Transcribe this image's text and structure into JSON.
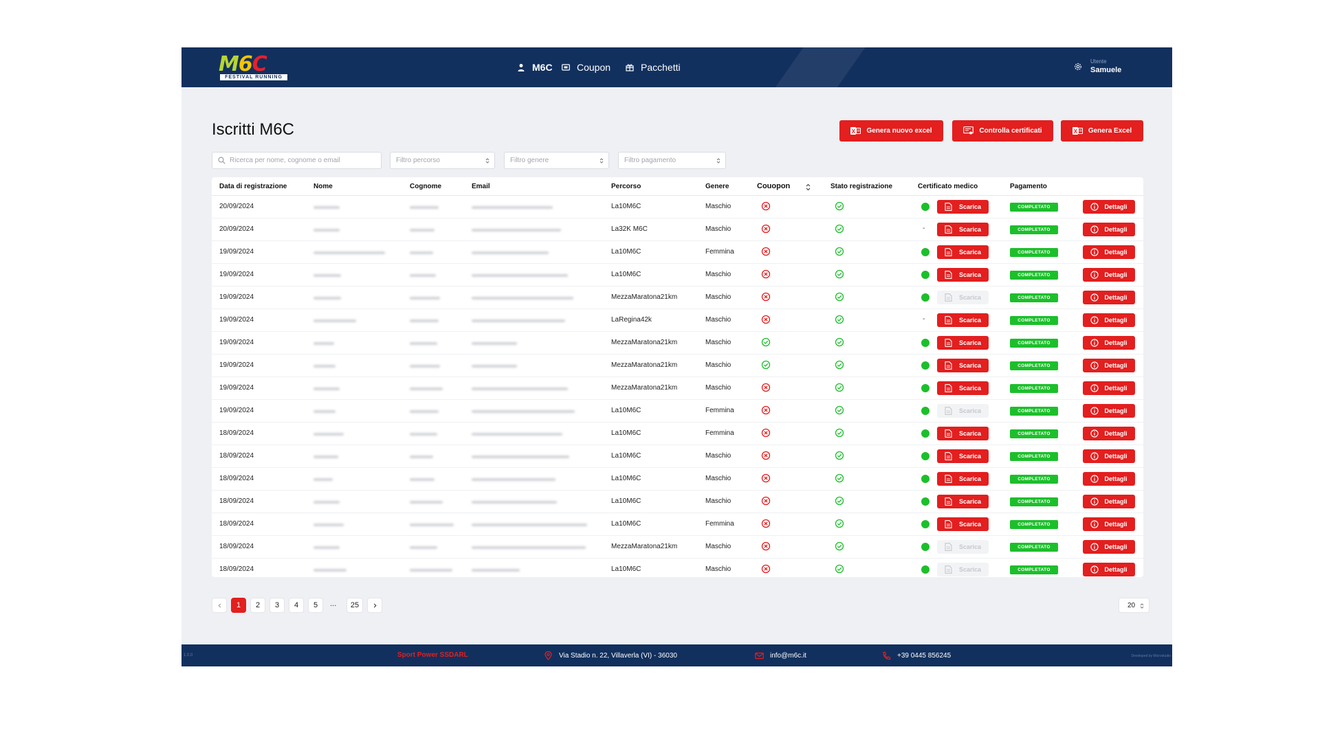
{
  "colors": {
    "navy": "#12305e",
    "red": "#e31f1f",
    "green": "#1cbf2b"
  },
  "header": {
    "nav": [
      {
        "label": "M6C",
        "icon": "user-icon",
        "active": true
      },
      {
        "label": "Coupon",
        "icon": "coupon-icon",
        "active": false
      },
      {
        "label": "Pacchetti",
        "icon": "gift-icon",
        "active": false
      }
    ],
    "user": {
      "role": "Utente",
      "name": "Samuele",
      "icon": "settings-icon"
    }
  },
  "page": {
    "title": "Iscritti M6C",
    "actions": {
      "new_excel": "Genera nuovo excel",
      "check_certificates": "Controlla certificati",
      "excel": "Genera Excel"
    }
  },
  "filters": {
    "search_placeholder": "Ricerca per nome, cognome o email",
    "route_placeholder": "Filtro percorso",
    "gender_placeholder": "Filtro genere",
    "payment_placeholder": "Filtro pagamento"
  },
  "table": {
    "headers": {
      "date": "Data di registrazione",
      "first_name": "Nome",
      "last_name": "Cognome",
      "email": "Email",
      "route": "Percorso",
      "gender": "Genere",
      "coupon": "Couopon",
      "status": "Stato registrazione",
      "certificate": "Certificato medico",
      "payment": "Pagamento"
    },
    "download_label": "Scarica",
    "details_label": "Dettagli",
    "rows": [
      {
        "date": "20/09/2024",
        "route": "La10M6C",
        "gender": "Maschio",
        "coupon": false,
        "registered": true,
        "cert": "ok",
        "download": true,
        "payment": "COMPLETATO"
      },
      {
        "date": "20/09/2024",
        "route": "La32K M6C",
        "gender": "Maschio",
        "coupon": false,
        "registered": true,
        "cert": "none",
        "download": true,
        "payment": "COMPLETATO"
      },
      {
        "date": "19/09/2024",
        "route": "La10M6C",
        "gender": "Femmina",
        "coupon": false,
        "registered": true,
        "cert": "ok",
        "download": true,
        "payment": "COMPLETATO"
      },
      {
        "date": "19/09/2024",
        "route": "La10M6C",
        "gender": "Maschio",
        "coupon": false,
        "registered": true,
        "cert": "ok",
        "download": true,
        "payment": "COMPLETATO"
      },
      {
        "date": "19/09/2024",
        "route": "MezzaMaratona21km",
        "gender": "Maschio",
        "coupon": false,
        "registered": true,
        "cert": "ok",
        "download": false,
        "payment": "COMPLETATO"
      },
      {
        "date": "19/09/2024",
        "route": "LaRegina42k",
        "gender": "Maschio",
        "coupon": false,
        "registered": true,
        "cert": "none",
        "download": true,
        "payment": "COMPLETATO"
      },
      {
        "date": "19/09/2024",
        "route": "MezzaMaratona21km",
        "gender": "Maschio",
        "coupon": true,
        "registered": true,
        "cert": "ok",
        "download": true,
        "payment": "COMPLETATO"
      },
      {
        "date": "19/09/2024",
        "route": "MezzaMaratona21km",
        "gender": "Maschio",
        "coupon": true,
        "registered": true,
        "cert": "ok",
        "download": true,
        "payment": "COMPLETATO"
      },
      {
        "date": "19/09/2024",
        "route": "MezzaMaratona21km",
        "gender": "Maschio",
        "coupon": false,
        "registered": true,
        "cert": "ok",
        "download": true,
        "payment": "COMPLETATO"
      },
      {
        "date": "19/09/2024",
        "route": "La10M6C",
        "gender": "Femmina",
        "coupon": false,
        "registered": true,
        "cert": "ok",
        "download": false,
        "payment": "COMPLETATO"
      },
      {
        "date": "18/09/2024",
        "route": "La10M6C",
        "gender": "Femmina",
        "coupon": false,
        "registered": true,
        "cert": "ok",
        "download": true,
        "payment": "COMPLETATO"
      },
      {
        "date": "18/09/2024",
        "route": "La10M6C",
        "gender": "Maschio",
        "coupon": false,
        "registered": true,
        "cert": "ok",
        "download": true,
        "payment": "COMPLETATO"
      },
      {
        "date": "18/09/2024",
        "route": "La10M6C",
        "gender": "Maschio",
        "coupon": false,
        "registered": true,
        "cert": "ok",
        "download": true,
        "payment": "COMPLETATO"
      },
      {
        "date": "18/09/2024",
        "route": "La10M6C",
        "gender": "Maschio",
        "coupon": false,
        "registered": true,
        "cert": "ok",
        "download": true,
        "payment": "COMPLETATO"
      },
      {
        "date": "18/09/2024",
        "route": "La10M6C",
        "gender": "Femmina",
        "coupon": false,
        "registered": true,
        "cert": "ok",
        "download": true,
        "payment": "COMPLETATO"
      },
      {
        "date": "18/09/2024",
        "route": "MezzaMaratona21km",
        "gender": "Maschio",
        "coupon": false,
        "registered": true,
        "cert": "ok",
        "download": false,
        "payment": "COMPLETATO"
      },
      {
        "date": "18/09/2024",
        "route": "La10M6C",
        "gender": "Maschio",
        "coupon": false,
        "registered": true,
        "cert": "ok",
        "download": false,
        "payment": "COMPLETATO"
      }
    ]
  },
  "pagination": {
    "pages": [
      "1",
      "2",
      "3",
      "4",
      "5"
    ],
    "ellipsis": "...",
    "last": "25",
    "page_size": "20",
    "current": "1"
  },
  "footer": {
    "company": "Sport Power SSDARL",
    "address": "Via Stadio n. 22, Villaverla (VI) - 36030",
    "email": "info@m6c.it",
    "phone": "+39 0445 856245"
  }
}
